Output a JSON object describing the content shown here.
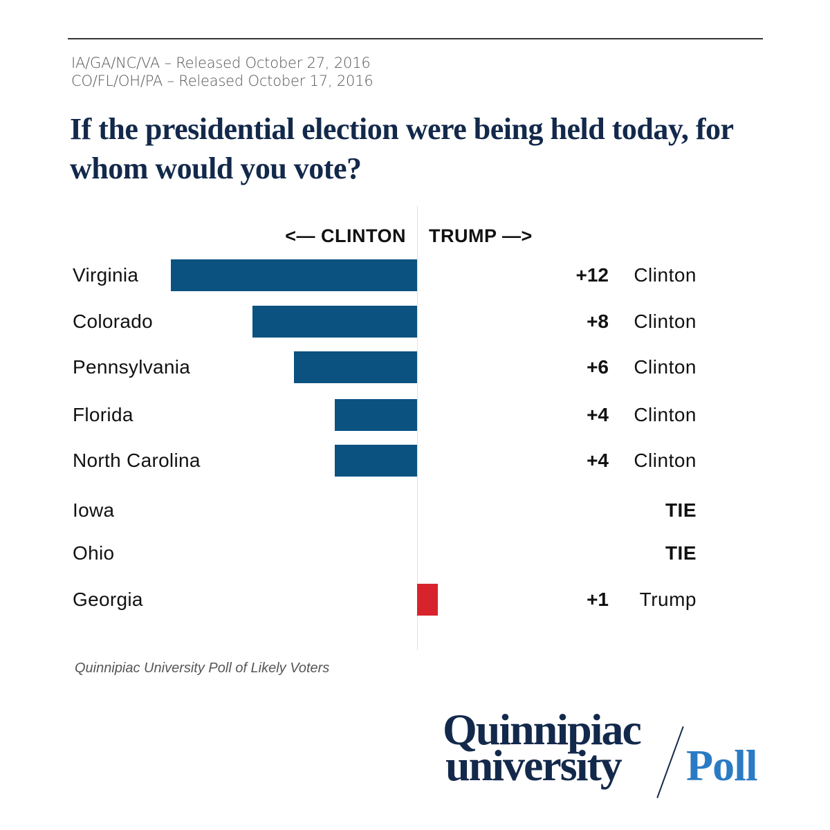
{
  "subtitle_lines": [
    "IA/GA/NC/VA – Released October 27, 2016",
    "CO/FL/OH/PA – Released October 17, 2016"
  ],
  "title": "If the presidential election were being held today, for whom would you vote?",
  "source": "Quinnipiac University Poll of Likely Voters",
  "logo": {
    "line1": "Quinnipiac",
    "line2": "university",
    "poll": "Poll"
  },
  "colors": {
    "clinton": "#0b5281",
    "trump": "#d7242c",
    "title": "#13294b",
    "logo_poll": "#2a7bc4"
  },
  "chart_data": {
    "type": "bar",
    "orientation": "horizontal-diverging",
    "left_label": "<— CLINTON",
    "right_label": "TRUMP —>",
    "categories": [
      "Virginia",
      "Colorado",
      "Pennsylvania",
      "Florida",
      "North Carolina",
      "Iowa",
      "Ohio",
      "Georgia"
    ],
    "values": [
      -12,
      -8,
      -6,
      -4,
      -4,
      0,
      0,
      1
    ],
    "margin_labels": [
      "+12",
      "+8",
      "+6",
      "+4",
      "+4",
      "",
      "",
      "+1"
    ],
    "winner_labels": [
      "Clinton",
      "Clinton",
      "Clinton",
      "Clinton",
      "Clinton",
      "TIE",
      "TIE",
      "Trump"
    ],
    "grid": false
  }
}
